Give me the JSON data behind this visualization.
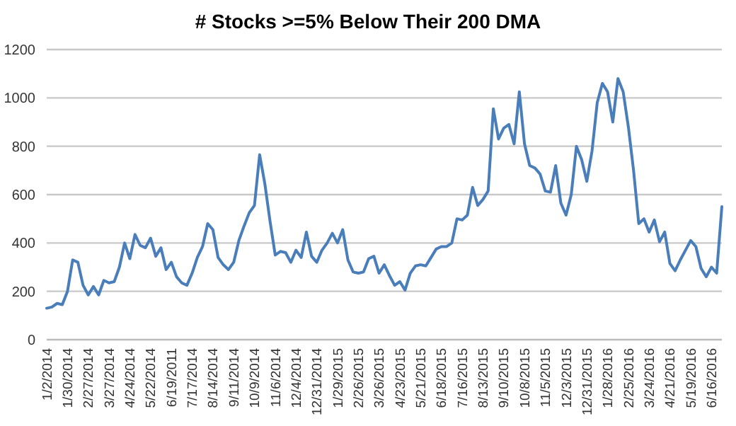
{
  "chart_data": {
    "type": "line",
    "title": "# Stocks >=5% Below Their 200 DMA",
    "categories": [
      "1/2/2014",
      null,
      null,
      null,
      "1/30/2014",
      null,
      null,
      null,
      "2/27/2014",
      null,
      null,
      null,
      "3/27/2014",
      null,
      null,
      null,
      "4/24/2014",
      null,
      null,
      null,
      "5/22/2014",
      null,
      null,
      null,
      "6/19/2011",
      null,
      null,
      null,
      "7/17/2014",
      null,
      null,
      null,
      "8/14/2014",
      null,
      null,
      null,
      "9/11/2014",
      null,
      null,
      null,
      "10/9/2014",
      null,
      null,
      null,
      "11/6/2014",
      null,
      null,
      null,
      "12/4/2014",
      null,
      null,
      null,
      "12/31/2014",
      null,
      null,
      null,
      "1/29/2015",
      null,
      null,
      null,
      "2/26/2015",
      null,
      null,
      null,
      "3/26/2015",
      null,
      null,
      null,
      "4/23/2015",
      null,
      null,
      null,
      "5/21/2015",
      null,
      null,
      null,
      "6/18/2015",
      null,
      null,
      null,
      "7/16/2015",
      null,
      null,
      null,
      "8/13/2015",
      null,
      null,
      null,
      "9/10/2015",
      null,
      null,
      null,
      "10/8/2015",
      null,
      null,
      null,
      "11/5/2015",
      null,
      null,
      null,
      "12/3/2015",
      null,
      null,
      null,
      "12/31/2015",
      null,
      null,
      null,
      "1/28/2016",
      null,
      null,
      null,
      "2/25/2016",
      null,
      null,
      null,
      "3/24/2016",
      null,
      null,
      null,
      "4/21/2016",
      null,
      null,
      null,
      "5/19/2016",
      null,
      null,
      null,
      "6/16/2016",
      null,
      null
    ],
    "series": [
      {
        "color": "#4a7ebb",
        "values": [
          130,
          135,
          150,
          145,
          200,
          330,
          320,
          225,
          185,
          220,
          185,
          245,
          235,
          240,
          300,
          400,
          335,
          435,
          390,
          380,
          420,
          345,
          380,
          290,
          320,
          260,
          235,
          225,
          275,
          340,
          385,
          480,
          455,
          340,
          310,
          290,
          320,
          410,
          470,
          525,
          555,
          765,
          645,
          490,
          350,
          365,
          360,
          320,
          370,
          340,
          445,
          345,
          320,
          370,
          400,
          440,
          400,
          455,
          330,
          280,
          275,
          280,
          335,
          345,
          275,
          310,
          265,
          225,
          240,
          205,
          275,
          305,
          310,
          305,
          340,
          375,
          385,
          385,
          400,
          500,
          495,
          515,
          630,
          555,
          580,
          615,
          955,
          830,
          875,
          890,
          810,
          1025,
          810,
          720,
          710,
          685,
          615,
          610,
          720,
          565,
          515,
          600,
          800,
          745,
          655,
          780,
          980,
          1060,
          1025,
          900,
          1080,
          1025,
          880,
          700,
          480,
          500,
          445,
          495,
          405,
          445,
          315,
          285,
          330,
          370,
          410,
          385,
          295,
          260,
          300,
          275,
          550
        ]
      }
    ],
    "ylim": [
      0,
      1200
    ],
    "yticks": [
      0,
      200,
      400,
      600,
      800,
      1000,
      1200
    ],
    "grid": "y",
    "marker": "none",
    "line_style": "solid"
  }
}
